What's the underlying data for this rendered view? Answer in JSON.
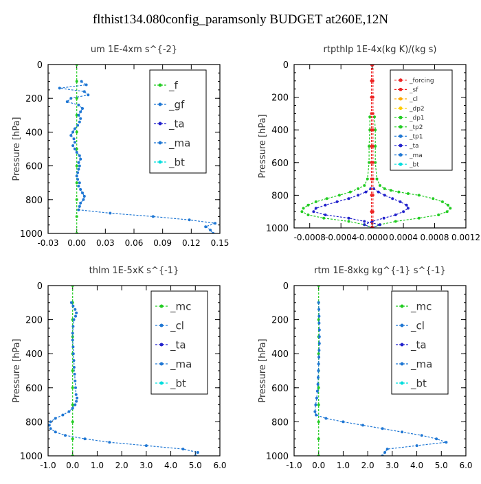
{
  "figure": {
    "title": "flthist134.080config_paramsonly  BUDGET at260E,12N"
  },
  "chart_data": [
    {
      "type": "line",
      "title": "um  1E-4xm s^{-2}",
      "ylabel": "Pressure [hPa]",
      "xlim": [
        -0.03,
        0.15
      ],
      "ylim": [
        0,
        1000
      ],
      "xticks": [
        "-0.03",
        "0.00",
        "0.03",
        "0.06",
        "0.09",
        "0.12",
        "0.15"
      ],
      "yticks": [
        "0",
        "200",
        "400",
        "600",
        "800",
        "1000"
      ],
      "legend": [
        "_f",
        "_gf",
        "_ta",
        "_ma",
        "_bt"
      ],
      "series": [
        {
          "name": "_f",
          "color": "#22cc22",
          "y": [
            0,
            100,
            200,
            300,
            400,
            500,
            600,
            700,
            800,
            900,
            1000
          ],
          "x": [
            0,
            0,
            0,
            0,
            0,
            0,
            0,
            0,
            0,
            0,
            0
          ]
        },
        {
          "name": "_gf",
          "color": "#1f77d4",
          "y": [
            100,
            120,
            140,
            160,
            180,
            200,
            220,
            240,
            260,
            280,
            300,
            320,
            340,
            360,
            380,
            400,
            420,
            440,
            460,
            480,
            500,
            520,
            540,
            560,
            580,
            600,
            620,
            640,
            660,
            680,
            700,
            720,
            740,
            760,
            780,
            800,
            820,
            840,
            860,
            880,
            900,
            920,
            940,
            960,
            980,
            1000
          ],
          "x": [
            0.005,
            0.01,
            -0.018,
            0.008,
            0.012,
            -0.006,
            -0.01,
            0.002,
            0.006,
            0.004,
            0.002,
            0.004,
            0.003,
            0.001,
            -0.002,
            -0.004,
            -0.006,
            -0.003,
            -0.002,
            -0.004,
            -0.002,
            0.0,
            0.003,
            0.004,
            0.002,
            0.003,
            0.002,
            0.001,
            0.0,
            0.001,
            0.003,
            0.002,
            0.004,
            0.006,
            0.008,
            0.007,
            0.004,
            0.003,
            0.002,
            0.035,
            0.08,
            0.118,
            0.145,
            0.135,
            0.14,
            0.143
          ]
        }
      ]
    },
    {
      "type": "line",
      "title": "rtpthlp  1E-4x(kg K)/(kg s)",
      "ylabel": "Pressure [hPa]",
      "xlim": [
        -0.001,
        0.0012
      ],
      "ylim": [
        0,
        1000
      ],
      "xticks": [
        "-0.0008",
        "-0.0004",
        "-0.0000",
        "0.0004",
        "0.0008",
        "0.0012"
      ],
      "xtick_values": [
        -0.0008,
        -0.0004,
        0,
        0.0004,
        0.0008,
        0.0012
      ],
      "yticks": [
        "0",
        "200",
        "400",
        "600",
        "800",
        "1000"
      ],
      "legend": [
        "_forcing",
        "_sf",
        "_cl",
        "_dp2",
        "_dp1",
        "_tp2",
        "_tp1",
        "_ta",
        "_ma",
        "_bt"
      ],
      "series": [
        {
          "name": "_dp1",
          "color": "#22cc22",
          "y": [
            320,
            400,
            500,
            600,
            700,
            740,
            760,
            770,
            780,
            790,
            800,
            820,
            840,
            860,
            880,
            900,
            920,
            940,
            960,
            980,
            1000
          ],
          "x": [
            3e-05,
            4e-05,
            4e-05,
            4e-05,
            6e-05,
            0.0001,
            0.00016,
            0.00024,
            0.00034,
            0.00046,
            0.0006,
            0.00078,
            0.0009,
            0.00097,
            0.001,
            0.00096,
            0.00085,
            0.0006,
            0.0003,
            0.0001,
            0.0
          ]
        },
        {
          "name": "_tp1",
          "color": "#22cc22",
          "y": [
            320,
            400,
            500,
            600,
            700,
            740,
            760,
            780,
            800,
            820,
            840,
            860,
            880,
            900,
            920,
            940,
            960,
            980,
            1000
          ],
          "x": [
            -3e-05,
            -3e-05,
            -4e-05,
            -4e-05,
            -6e-05,
            -0.0001,
            -0.00018,
            -0.00028,
            -0.00042,
            -0.00058,
            -0.00072,
            -0.00082,
            -0.00088,
            -0.0009,
            -0.00082,
            -0.00062,
            -0.0003,
            -0.0001,
            0.0
          ]
        },
        {
          "name": "_ta",
          "color": "#2222cc",
          "y": [
            760,
            780,
            800,
            820,
            840,
            860,
            880,
            900,
            920,
            940,
            960,
            980,
            1000
          ],
          "x": [
            -2e-05,
            -8e-05,
            -0.00018,
            -0.0003,
            -0.00045,
            -0.0006,
            -0.00072,
            -0.00075,
            -0.0006,
            -0.0003,
            -0.0001,
            0.0001,
            0.0
          ]
        },
        {
          "name": "_ma",
          "color": "#2222cc",
          "y": [
            760,
            780,
            800,
            820,
            840,
            860,
            880,
            900,
            920,
            940,
            960,
            980,
            1000
          ],
          "x": [
            2e-05,
            8e-05,
            0.00016,
            0.00026,
            0.00036,
            0.00044,
            0.00046,
            0.0004,
            0.0003,
            0.00015,
            0.0,
            -0.0001,
            0.0
          ]
        },
        {
          "name": "_forcing",
          "color": "#ee2222",
          "y": [
            0,
            100,
            200,
            300,
            400,
            500,
            600,
            700,
            800,
            900,
            1000
          ],
          "x": [
            -1e-05,
            -1e-05,
            -1e-05,
            -1e-05,
            -1e-05,
            -1e-05,
            -1e-05,
            -1e-05,
            -1e-05,
            -1e-05,
            -1e-05
          ]
        },
        {
          "name": "_sf",
          "color": "#ee2222",
          "y": [
            0,
            100,
            200,
            300,
            400,
            500,
            600,
            700,
            800,
            900,
            1000
          ],
          "x": [
            1e-05,
            1e-05,
            1e-05,
            1e-05,
            1e-05,
            1e-05,
            1e-05,
            1e-05,
            1e-05,
            1e-05,
            1e-05
          ]
        }
      ]
    },
    {
      "type": "line",
      "title": "thlm  1E-5xK s^{-1}",
      "ylabel": "Pressure [hPa]",
      "xlim": [
        -1.0,
        6.0
      ],
      "ylim": [
        0,
        1000
      ],
      "xticks": [
        "-1.0",
        "0.0",
        "1.0",
        "2.0",
        "3.0",
        "4.0",
        "5.0",
        "6.0"
      ],
      "yticks": [
        "0",
        "200",
        "400",
        "600",
        "800",
        "1000"
      ],
      "legend": [
        "_mc",
        "_cl",
        "_ta",
        "_ma",
        "_bt"
      ],
      "series": [
        {
          "name": "_mc",
          "color": "#22cc22",
          "y": [
            0,
            100,
            200,
            300,
            400,
            500,
            600,
            700,
            800,
            900,
            1000
          ],
          "x": [
            0,
            0,
            0,
            0,
            0,
            0,
            0,
            0,
            0,
            0,
            0
          ]
        },
        {
          "name": "_cl",
          "color": "#1f77d4",
          "y": [
            100,
            120,
            140,
            160,
            180,
            200,
            240,
            280,
            320,
            360,
            400,
            440,
            480,
            520,
            560,
            600,
            640,
            660,
            680,
            700,
            720,
            740,
            760,
            780,
            800,
            820,
            840,
            860,
            880,
            900,
            920,
            940,
            960,
            980,
            1000
          ],
          "x": [
            -0.05,
            0.02,
            0.1,
            0.15,
            0.12,
            0.05,
            0.02,
            0.0,
            0.0,
            0.02,
            0.03,
            0.05,
            0.06,
            0.08,
            0.1,
            0.12,
            0.14,
            0.18,
            0.15,
            0.1,
            0.0,
            -0.15,
            -0.4,
            -0.7,
            -0.9,
            -0.95,
            -0.9,
            -0.7,
            -0.3,
            0.5,
            1.5,
            3.0,
            4.5,
            5.1,
            5.0
          ]
        }
      ]
    },
    {
      "type": "line",
      "title": "rtm  1E-8xkg kg^{-1} s^{-1}",
      "ylabel": "Pressure [hPa]",
      "xlim": [
        -1.0,
        6.0
      ],
      "ylim": [
        0,
        1000
      ],
      "xticks": [
        "-1.0",
        "0.0",
        "1.0",
        "2.0",
        "3.0",
        "4.0",
        "5.0",
        "6.0"
      ],
      "yticks": [
        "0",
        "200",
        "400",
        "600",
        "800",
        "1000"
      ],
      "legend": [
        "_mc",
        "_cl",
        "_ta",
        "_ma",
        "_bt"
      ],
      "series": [
        {
          "name": "_mc",
          "color": "#22cc22",
          "y": [
            0,
            100,
            200,
            300,
            400,
            500,
            600,
            700,
            800,
            900,
            1000
          ],
          "x": [
            0,
            0,
            0,
            0,
            0,
            0,
            0,
            0,
            0,
            0,
            0
          ]
        },
        {
          "name": "_cl",
          "color": "#1f77d4",
          "y": [
            100,
            140,
            180,
            220,
            260,
            300,
            340,
            380,
            420,
            460,
            500,
            540,
            580,
            620,
            660,
            700,
            740,
            760,
            780,
            800,
            820,
            840,
            860,
            880,
            900,
            920,
            940,
            960,
            980,
            1000
          ],
          "x": [
            0.0,
            0.01,
            0.02,
            0.02,
            0.03,
            0.03,
            0.03,
            0.02,
            0.01,
            0.0,
            -0.01,
            -0.02,
            -0.03,
            -0.05,
            -0.08,
            -0.12,
            -0.15,
            -0.1,
            0.3,
            1.0,
            1.8,
            2.6,
            3.4,
            4.2,
            4.8,
            5.2,
            4.0,
            2.8,
            2.7,
            2.6
          ]
        }
      ]
    }
  ]
}
